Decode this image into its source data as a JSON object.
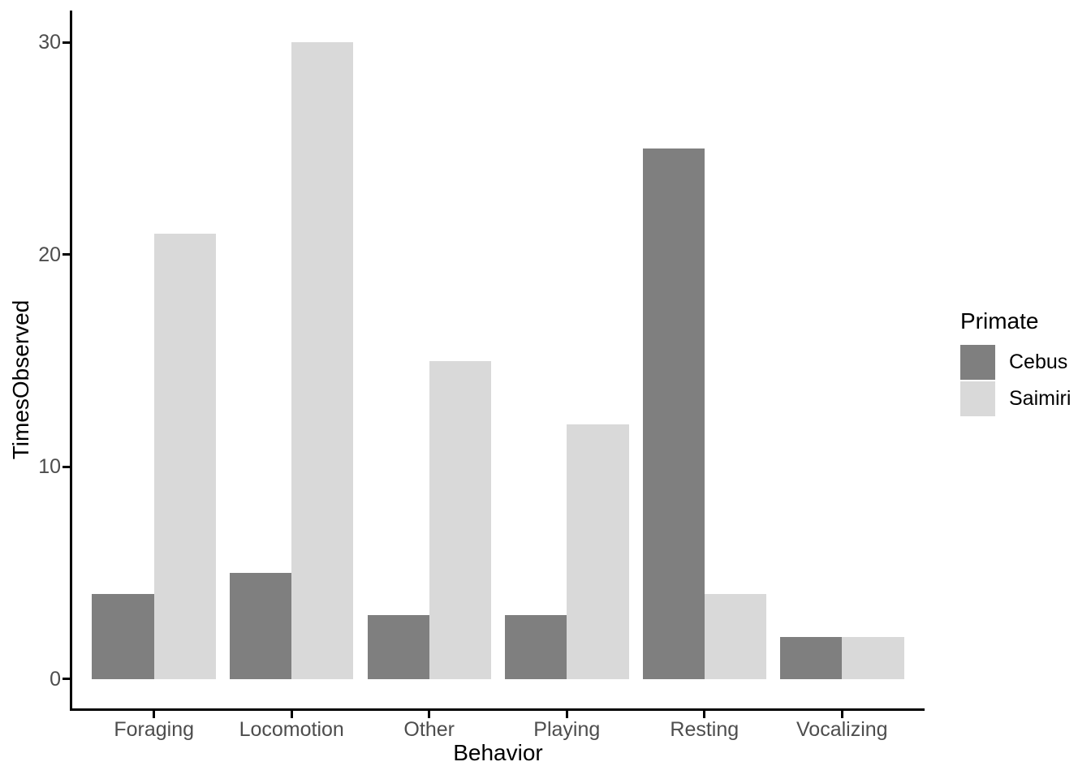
{
  "chart_data": {
    "type": "bar",
    "grouping": "dodged",
    "title": "",
    "xlabel": "Behavior",
    "ylabel": "TimesObserved",
    "legend_title": "Primate",
    "legend_position": "right",
    "categories": [
      "Foraging",
      "Locomotion",
      "Other",
      "Playing",
      "Resting",
      "Vocalizing"
    ],
    "series": [
      {
        "name": "Cebus",
        "color": "#7F7F7F",
        "values": [
          4,
          5,
          3,
          3,
          25,
          2
        ]
      },
      {
        "name": "Saimiri",
        "color": "#D9D9D9",
        "values": [
          21,
          30,
          15,
          12,
          4,
          2
        ]
      }
    ],
    "y_ticks": [
      0,
      10,
      20,
      30
    ],
    "ylim": [
      -1.5,
      31.5
    ],
    "grid": false,
    "theme": "classic",
    "axis_color": "#000000",
    "tick_label_color": "#4D4D4D",
    "background_color": "#FFFFFF"
  }
}
